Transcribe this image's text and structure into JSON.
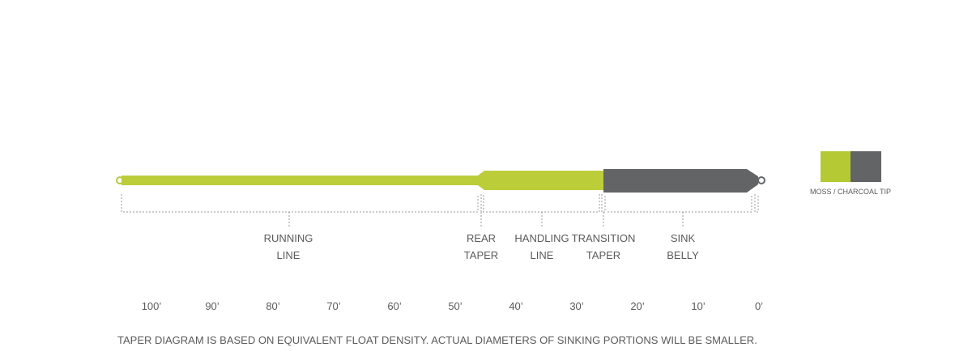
{
  "sections": [
    {
      "lines": [
        "RUNNING",
        "LINE"
      ]
    },
    {
      "lines": [
        "REAR",
        "TAPER"
      ]
    },
    {
      "lines": [
        "HANDLING",
        "LINE"
      ]
    },
    {
      "lines": [
        "TRANSITION",
        "TAPER"
      ]
    },
    {
      "lines": [
        "SINK",
        "BELLY"
      ]
    }
  ],
  "scale": [
    "100’",
    "90’",
    "80’",
    "70’",
    "60’",
    "50’",
    "40’",
    "30’",
    "20’",
    "10’",
    "0’"
  ],
  "legend": {
    "label": "MOSS / CHARCOAL TIP"
  },
  "footnote": "TAPER DIAGRAM IS BASED ON EQUIVALENT FLOAT DENSITY.  ACTUAL DIAMETERS OF SINKING PORTIONS WILL BE SMALLER."
}
